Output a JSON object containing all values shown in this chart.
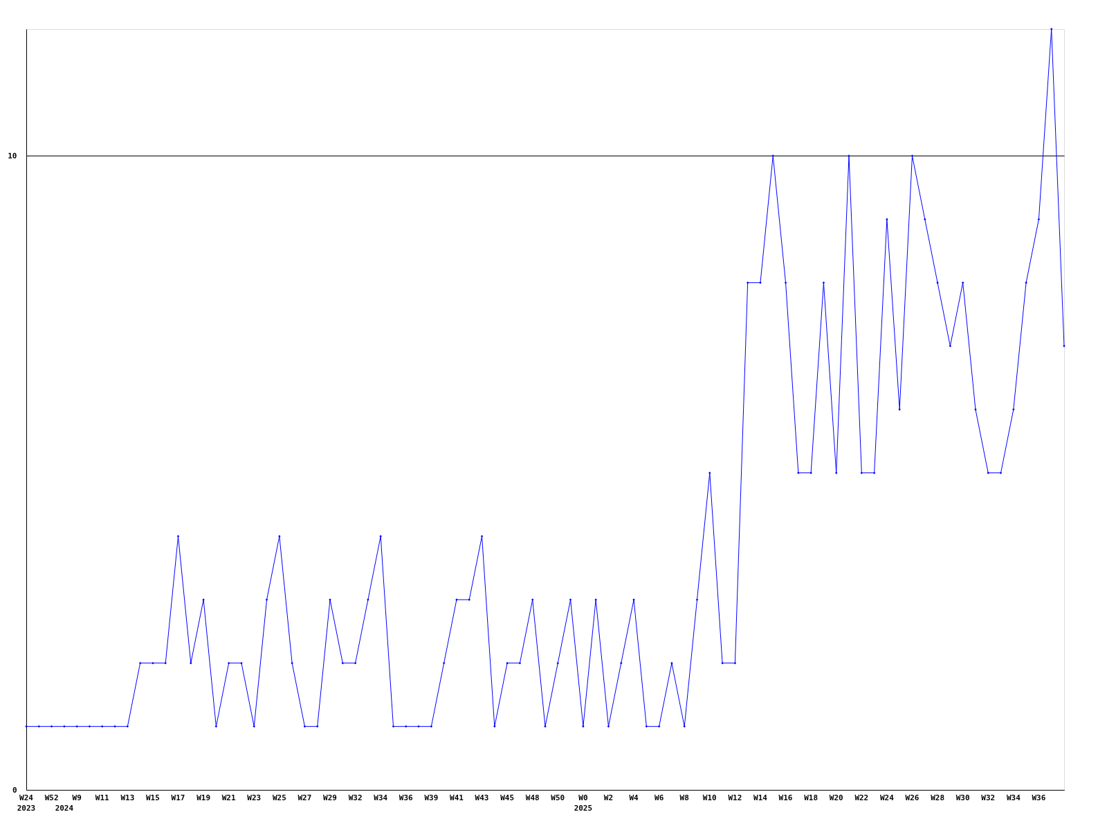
{
  "chart_data": {
    "type": "line",
    "categories": [
      "W24\n2023",
      null,
      "W52",
      "\n2024",
      "W9",
      null,
      "W11",
      null,
      "W13",
      null,
      "W15",
      null,
      "W17",
      null,
      "W19",
      null,
      "W21",
      null,
      "W23",
      null,
      "W25",
      null,
      "W27",
      null,
      "W29",
      null,
      "W32",
      null,
      "W34",
      null,
      "W36",
      null,
      "W39",
      null,
      "W41",
      null,
      "W43",
      null,
      "W45",
      null,
      "W48",
      null,
      "W50",
      null,
      "W0\n2025",
      null,
      "W2",
      null,
      "W4",
      null,
      "W6",
      null,
      "W8",
      null,
      "W10",
      null,
      "W12",
      null,
      "W14",
      null,
      "W16",
      null,
      "W18",
      null,
      "W20",
      null,
      "W22",
      null,
      "W24",
      null,
      "W26",
      null,
      "W28",
      null,
      "W30",
      null,
      "W32",
      null,
      "W34",
      null,
      "W36",
      null,
      null
    ],
    "series": [
      {
        "color": "#0000ff",
        "values": [
          1,
          1,
          1,
          1,
          1,
          1,
          1,
          1,
          1,
          2,
          2,
          2,
          4,
          2,
          3,
          1,
          2,
          2,
          1,
          3,
          4,
          2,
          1,
          1,
          3,
          2,
          2,
          3,
          4,
          1,
          1,
          1,
          1,
          2,
          3,
          3,
          4,
          1,
          2,
          2,
          3,
          1,
          2,
          3,
          1,
          3,
          1,
          2,
          3,
          1,
          1,
          2,
          1,
          3,
          5,
          2,
          2,
          8,
          8,
          10,
          8,
          5,
          5,
          8,
          5,
          10,
          5,
          5,
          9,
          6,
          10,
          9,
          8,
          7,
          8,
          6,
          5,
          5,
          6,
          8,
          9,
          12,
          7
        ]
      }
    ],
    "ylim": [
      0,
      12
    ],
    "yticks": [
      0,
      10
    ],
    "grid": "y",
    "marker": "diamond",
    "line_style": "solid",
    "legend": false
  }
}
